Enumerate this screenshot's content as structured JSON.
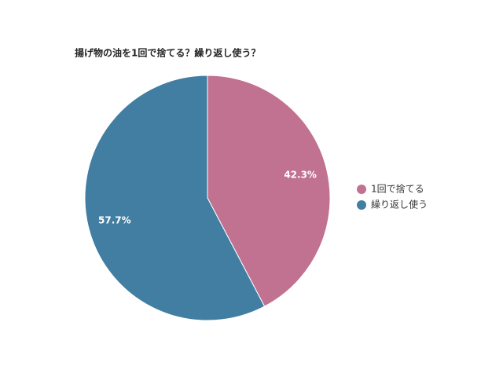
{
  "chart_data": {
    "type": "pie",
    "title": "揚げ物の油を1回で捨てる？繰り返し使う？",
    "categories": [
      "1回で捨てる",
      "繰り返し使う"
    ],
    "values": [
      42.3,
      57.7
    ],
    "value_labels": [
      "42.3%",
      "57.7%"
    ],
    "colors": [
      "#c07290",
      "#417ea2"
    ],
    "legend": "right"
  }
}
